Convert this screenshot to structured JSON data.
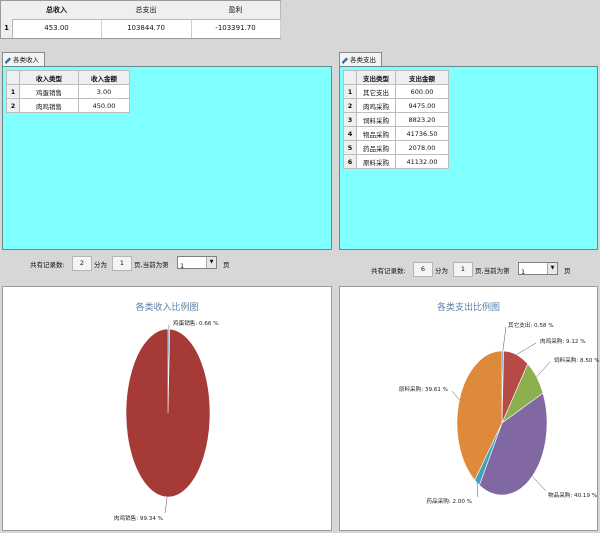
{
  "summary": {
    "headers": [
      "总收入",
      "总支出",
      "盈利"
    ],
    "row_number": "1",
    "values": [
      "453.00",
      "103844.70",
      "-103391.70"
    ]
  },
  "income_panel": {
    "tab_label": "各类收入汇总",
    "columns": [
      "收入类型",
      "收入金额"
    ],
    "rows": [
      {
        "n": "1",
        "type": "鸡蛋销售",
        "amount": "3.00"
      },
      {
        "n": "2",
        "type": "肉鸡销售",
        "amount": "450.00"
      }
    ],
    "pager": {
      "total_label": "共有记录数:",
      "total": "2",
      "split_label": "分为",
      "pages": "1",
      "current_label": "页,当前为第",
      "current": "1",
      "page_suffix": "页"
    }
  },
  "expense_panel": {
    "tab_label": "各类支出汇总",
    "columns": [
      "支出类型",
      "支出金额"
    ],
    "rows": [
      {
        "n": "1",
        "type": "其它支出",
        "amount": "600.00"
      },
      {
        "n": "2",
        "type": "肉鸡采购",
        "amount": "9475.00"
      },
      {
        "n": "3",
        "type": "饲料采购",
        "amount": "8823.20"
      },
      {
        "n": "4",
        "type": "物品采购",
        "amount": "41736.50"
      },
      {
        "n": "5",
        "type": "药品采购",
        "amount": "2078.00"
      },
      {
        "n": "6",
        "type": "原料采购",
        "amount": "41132.00"
      }
    ],
    "pager": {
      "total_label": "共有记录数:",
      "total": "6",
      "split_label": "分为",
      "pages": "1",
      "current_label": "页,当前为第",
      "current": "1",
      "page_suffix": "页"
    }
  },
  "chart_data": [
    {
      "type": "pie",
      "title": "各类收入比例图",
      "labels": [
        "鸡蛋销售",
        "肉鸡销售"
      ],
      "values": [
        0.66,
        99.34
      ],
      "value_labels": [
        "鸡蛋销售: 0.66 %",
        "肉鸡销售: 99.34 %"
      ],
      "colors": [
        "#5b83b8",
        "#a63a36"
      ]
    },
    {
      "type": "pie",
      "title": "各类支出比例图",
      "labels": [
        "其它支出",
        "肉鸡采购",
        "饲料采购",
        "物品采购",
        "药品采购",
        "原料采购"
      ],
      "values": [
        0.58,
        9.12,
        8.5,
        40.19,
        2.0,
        39.61
      ],
      "value_labels": [
        "其它支出: 0.58 %",
        "肉鸡采购: 9.12 %",
        "饲料采购: 8.50 %",
        "物品采购: 40.19 %",
        "药品采购: 2.00 %",
        "原料采购: 39.61 %"
      ],
      "colors": [
        "#5b83b8",
        "#b64a44",
        "#8db04f",
        "#8268a3",
        "#3fa3bd",
        "#de8a3a"
      ]
    }
  ]
}
